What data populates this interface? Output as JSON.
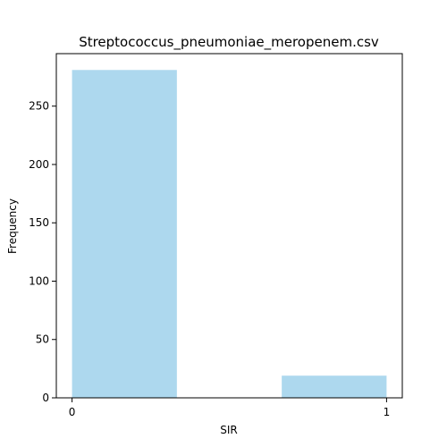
{
  "chart_data": {
    "type": "bar",
    "title": "Streptococcus_pneumoniae_meropenem.csv",
    "xlabel": "SIR",
    "ylabel": "Frequency",
    "bins": [
      {
        "x_start": 0,
        "x_end": 0.3333,
        "value": 281
      },
      {
        "x_start": 0.6667,
        "x_end": 1,
        "value": 19
      }
    ],
    "x_ticks": [
      0,
      1
    ],
    "y_ticks": [
      0,
      50,
      100,
      150,
      200,
      250
    ],
    "xlim": [
      -0.05,
      1.05
    ],
    "ylim": [
      0,
      295
    ],
    "bar_color": "#add8ee",
    "grid": false,
    "legend": "none"
  }
}
